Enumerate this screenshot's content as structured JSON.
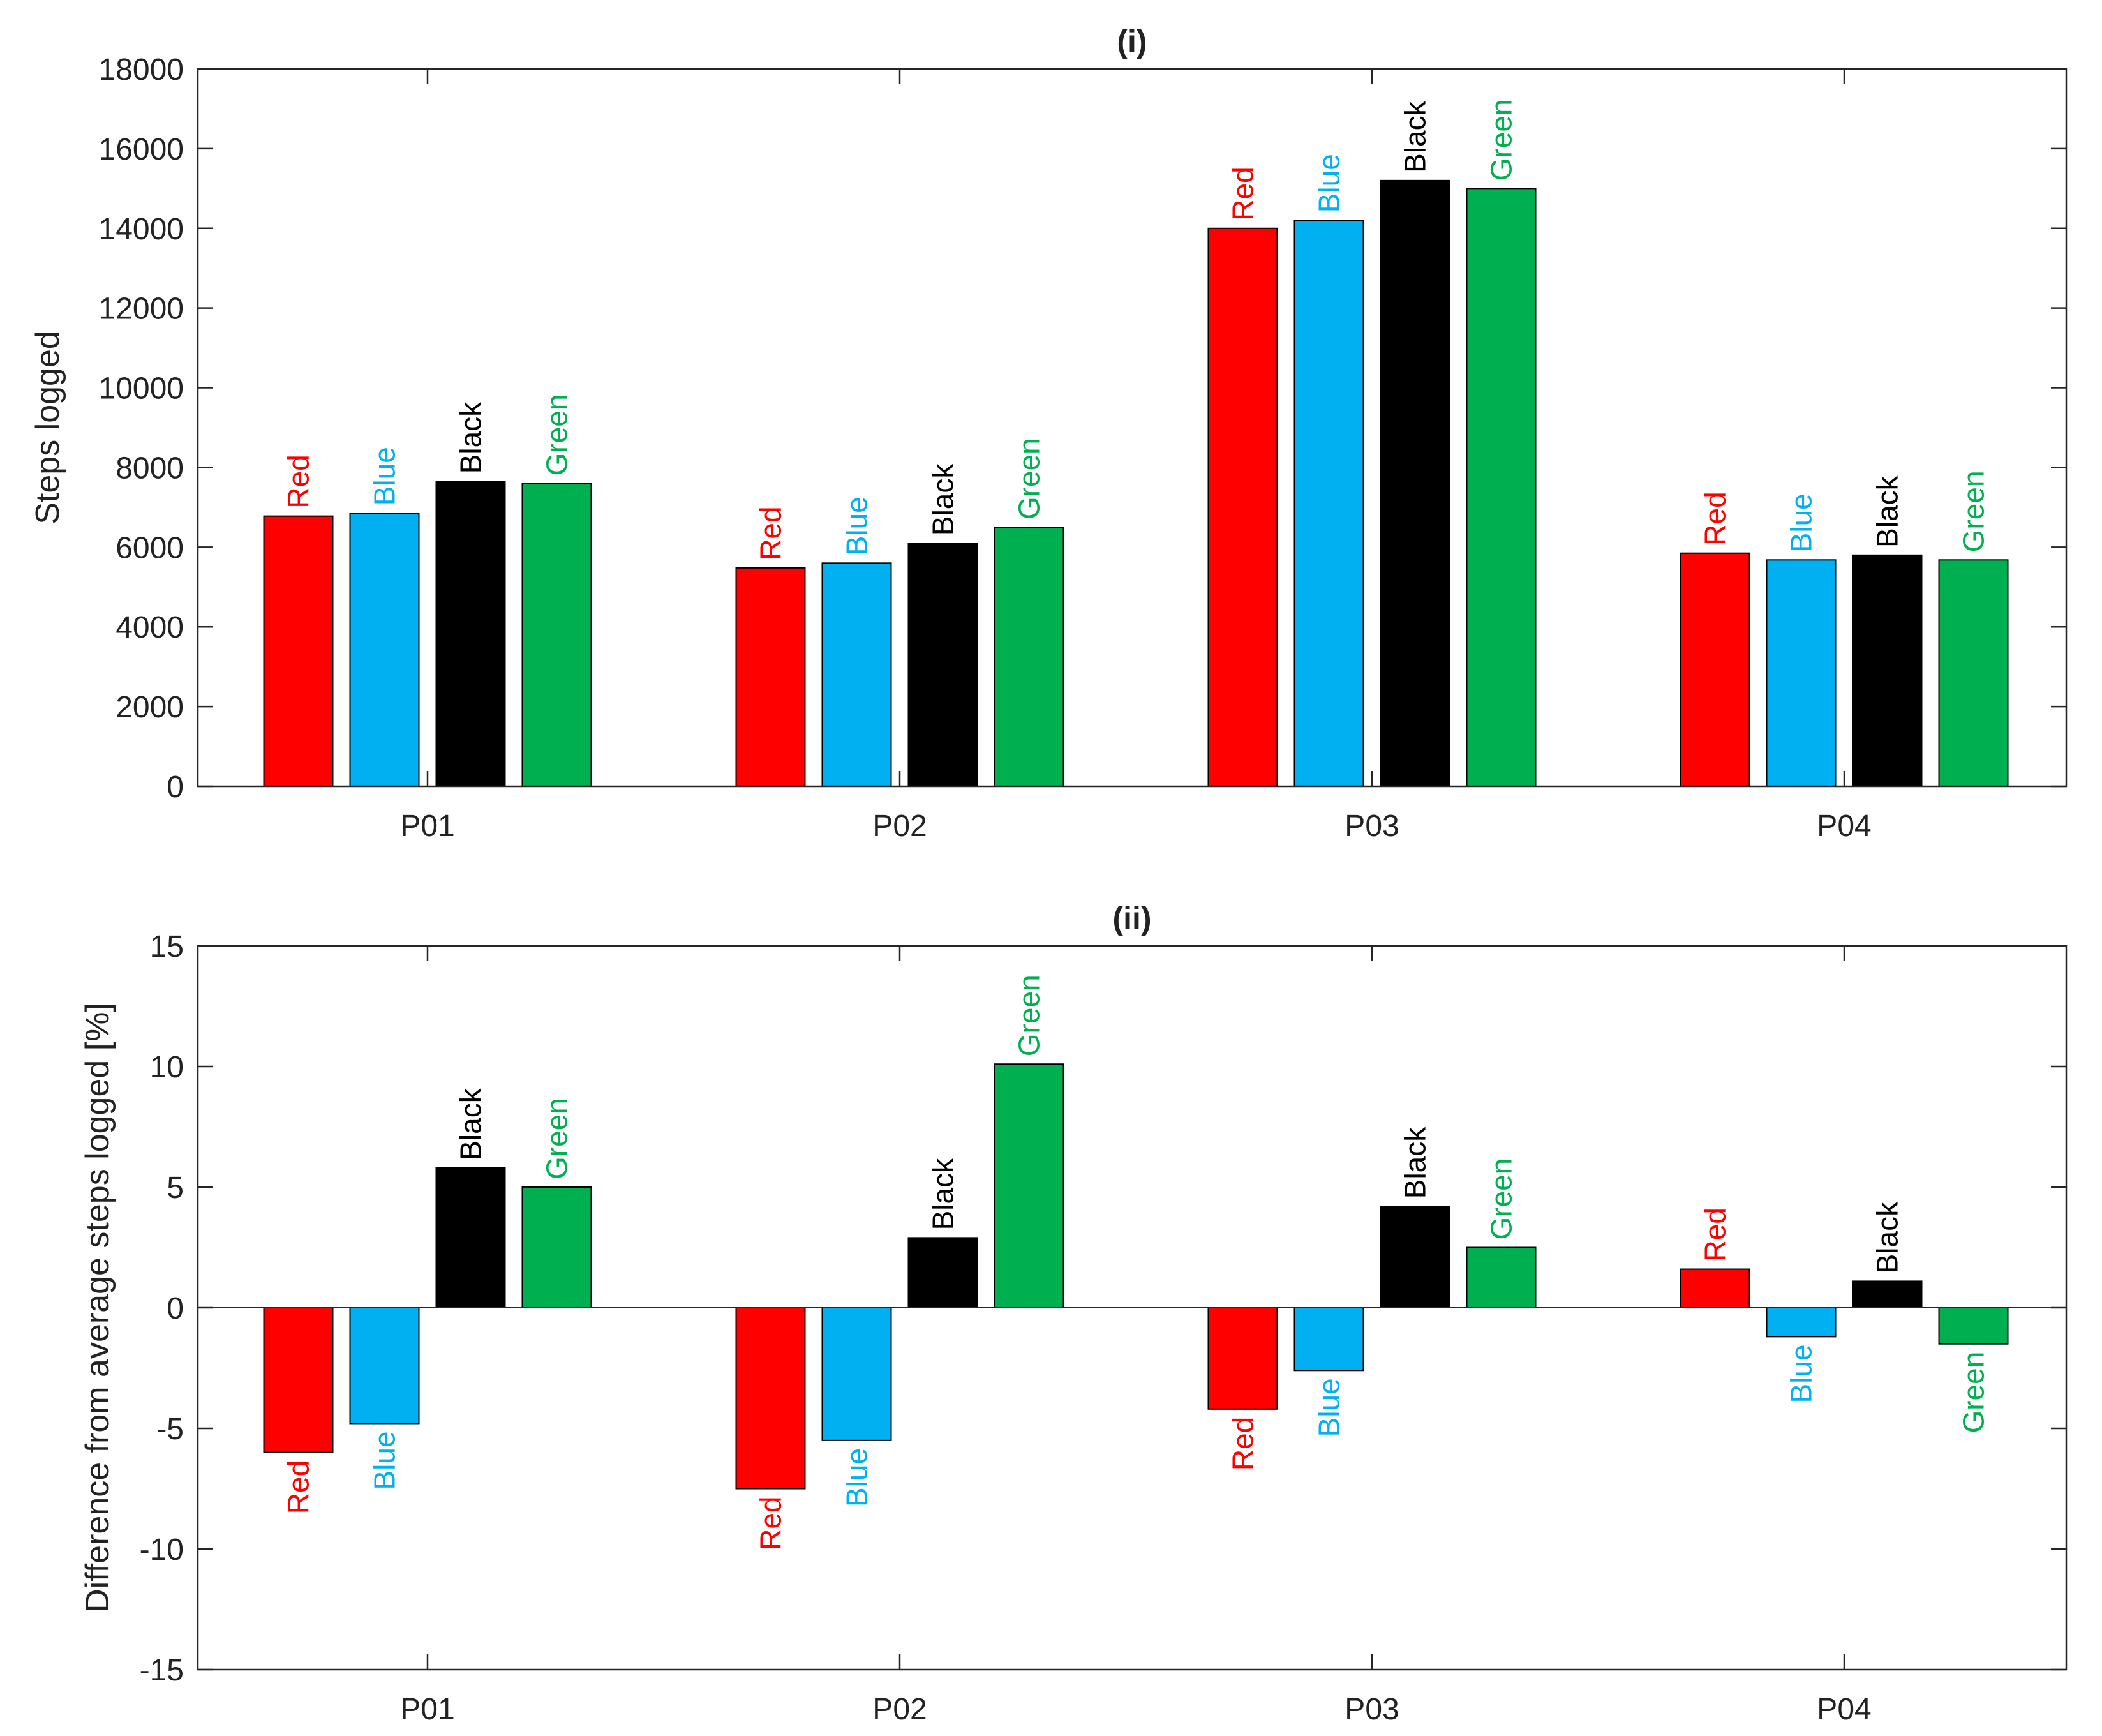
{
  "colors": {
    "Red": "#ff0000",
    "Blue": "#00b0f0",
    "Black": "#000000",
    "Green": "#00b050"
  },
  "chart_data": [
    {
      "type": "bar",
      "title": "(i)",
      "xlabel": "",
      "ylabel": "Steps logged",
      "ylim": [
        0,
        18000
      ],
      "yticks": [
        0,
        2000,
        4000,
        6000,
        8000,
        10000,
        12000,
        14000,
        16000,
        18000
      ],
      "categories": [
        "P01",
        "P02",
        "P03",
        "P04"
      ],
      "series": [
        {
          "name": "Red",
          "values": [
            6780,
            5480,
            14000,
            5850
          ]
        },
        {
          "name": "Blue",
          "values": [
            6850,
            5600,
            14200,
            5680
          ]
        },
        {
          "name": "Black",
          "values": [
            7650,
            6100,
            15200,
            5800
          ]
        },
        {
          "name": "Green",
          "values": [
            7600,
            6500,
            15000,
            5680
          ]
        }
      ]
    },
    {
      "type": "bar",
      "title": "(ii)",
      "xlabel": "",
      "ylabel": "Difference from average steps logged [%]",
      "ylim": [
        -15,
        15
      ],
      "yticks": [
        -15,
        -10,
        -5,
        0,
        5,
        10,
        15
      ],
      "categories": [
        "P01",
        "P02",
        "P03",
        "P04"
      ],
      "series": [
        {
          "name": "Red",
          "values": [
            -6.0,
            -7.5,
            -4.2,
            1.6
          ]
        },
        {
          "name": "Blue",
          "values": [
            -4.8,
            -5.5,
            -2.6,
            -1.2
          ]
        },
        {
          "name": "Black",
          "values": [
            5.8,
            2.9,
            4.2,
            1.1
          ]
        },
        {
          "name": "Green",
          "values": [
            5.0,
            10.1,
            2.5,
            -1.5
          ]
        }
      ]
    }
  ]
}
